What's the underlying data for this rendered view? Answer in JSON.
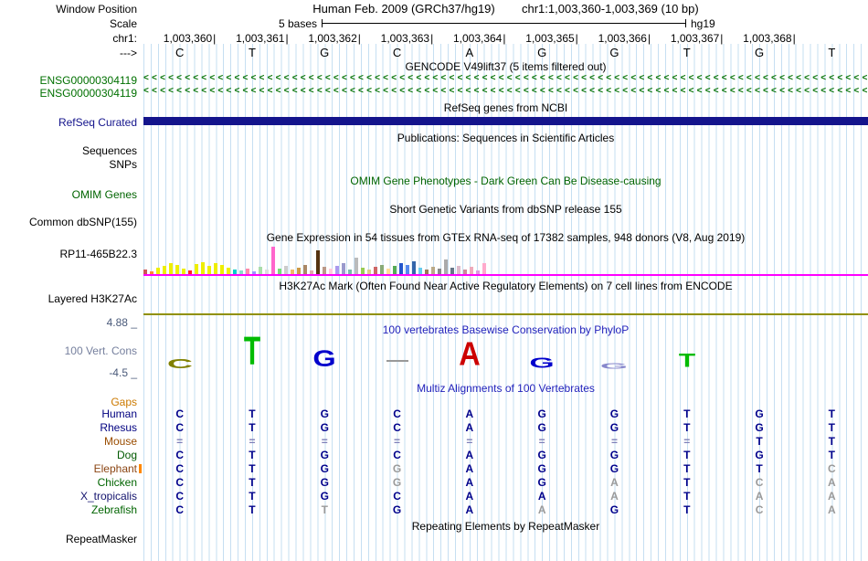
{
  "header": {
    "assembly": "Human Feb. 2009 (GRCh37/hg19)",
    "range": "chr1:1,003,360-1,003,369 (10 bp)",
    "window_position_label": "Window Position",
    "scale_label": "Scale",
    "scale_value": "5 bases",
    "assembly_short": "hg19",
    "chrom_label": "chr1:",
    "strand_arrow": "--->",
    "positions": [
      "1,003,360",
      "1,003,361",
      "1,003,362",
      "1,003,363",
      "1,003,364",
      "1,003,365",
      "1,003,366",
      "1,003,367",
      "1,003,368"
    ],
    "sequence": [
      "C",
      "T",
      "G",
      "C",
      "A",
      "G",
      "G",
      "T",
      "G",
      "T"
    ]
  },
  "tracks": {
    "gencode": {
      "title": "GENCODE V49lift37 (5 items filtered out)",
      "genes": [
        {
          "label": "ENSG00000304119"
        },
        {
          "label": "ENSG00000304119"
        }
      ]
    },
    "refseq": {
      "title": "RefSeq genes from NCBI",
      "label": "RefSeq Curated"
    },
    "publications": {
      "title": "Publications: Sequences in Scientific Articles",
      "row_labels": [
        "Sequences",
        "SNPs"
      ]
    },
    "omim": {
      "title": "OMIM Gene Phenotypes - Dark Green Can Be Disease-causing",
      "label": "OMIM Genes"
    },
    "dbsnp": {
      "title": "Short Genetic Variants from dbSNP release 155",
      "label": "Common dbSNP(155)"
    },
    "gtex": {
      "title": "Gene Expression in 54 tissues from GTEx RNA-seq of 17382 samples, 948 donors (V8, Aug 2019)",
      "label": "RP11-465B22.3"
    },
    "h3k27ac": {
      "title": "H3K27Ac Mark (Often Found Near Active Regulatory Elements) on 7 cell lines from ENCODE",
      "label": "Layered H3K27Ac"
    },
    "conservation": {
      "title": "100 vertebrates Basewise Conservation by PhyloP",
      "label": "100 Vert. Cons",
      "max_label": "4.88 _",
      "min_label": "-4.5 _",
      "logo": [
        {
          "col": 0,
          "ch": "C",
          "color": "#808000",
          "h": 10,
          "sx": 1.5
        },
        {
          "col": 1,
          "ch": "T",
          "color": "#00BB00",
          "h": 30,
          "sx": 1.15
        },
        {
          "col": 2,
          "ch": "G",
          "color": "#0000CC",
          "h": 17,
          "sx": 1.25
        },
        {
          "col": 3,
          "ch": "-",
          "color": "#999999",
          "h": 2,
          "sx": 1,
          "bar": true
        },
        {
          "col": 4,
          "ch": "A",
          "color": "#CC0000",
          "h": 25,
          "sx": 1.25
        },
        {
          "col": 5,
          "ch": "G",
          "color": "#0000CC",
          "h": 11,
          "sx": 1.35
        },
        {
          "col": 6,
          "ch": "G",
          "color": "#8888CC",
          "h": 6,
          "sx": 1.5
        },
        {
          "col": 7,
          "ch": "T",
          "color": "#00BB00",
          "h": 15,
          "sx": 1.15
        }
      ]
    },
    "multiz": {
      "title": "Multiz Alignments of 100 Vertebrates",
      "gaps_label": "Gaps",
      "rows": [
        {
          "species": "Human",
          "color": "#000080",
          "bases": [
            "C",
            "T",
            "G",
            "C",
            "A",
            "G",
            "G",
            "T",
            "G",
            "T"
          ],
          "gray": []
        },
        {
          "species": "Rhesus",
          "color": "#000080",
          "bases": [
            "C",
            "T",
            "G",
            "C",
            "A",
            "G",
            "G",
            "T",
            "G",
            "T"
          ],
          "gray": []
        },
        {
          "species": "Mouse",
          "color": "#994C00",
          "bases": [
            "=",
            "=",
            "=",
            "=",
            "=",
            "=",
            "=",
            "=",
            "T",
            "T"
          ],
          "gray": []
        },
        {
          "species": "Dog",
          "color": "#005900",
          "bases": [
            "C",
            "T",
            "G",
            "C",
            "A",
            "G",
            "G",
            "T",
            "G",
            "T"
          ],
          "gray": []
        },
        {
          "species": "Elephant",
          "color": "#8B4513",
          "bases": [
            "C",
            "T",
            "G",
            "G",
            "A",
            "G",
            "G",
            "T",
            "T",
            "C"
          ],
          "gray": [
            3,
            9
          ],
          "tick": true
        },
        {
          "species": "Chicken",
          "color": "#006400",
          "bases": [
            "C",
            "T",
            "G",
            "G",
            "A",
            "G",
            "A",
            "T",
            "C",
            "A"
          ],
          "gray": [
            3,
            6,
            8,
            9
          ]
        },
        {
          "species": "X_tropicalis",
          "color": "#14146E",
          "bases": [
            "C",
            "T",
            "G",
            "C",
            "A",
            "A",
            "A",
            "T",
            "A",
            "A"
          ],
          "gray": [
            6,
            8,
            9
          ]
        },
        {
          "species": "Zebrafish",
          "color": "#006400",
          "bases": [
            "C",
            "T",
            "T",
            "G",
            "A",
            "A",
            "G",
            "T",
            "C",
            "A"
          ],
          "gray": [
            2,
            5,
            8,
            9
          ]
        }
      ]
    },
    "repeatmasker": {
      "title": "Repeating Elements by RepeatMasker",
      "label": "RepeatMasker"
    }
  },
  "chart_data": {
    "type": "bar",
    "title": "Gene Expression in 54 tissues from GTEx RNA-seq of 17382 samples, 948 donors (V8, Aug 2019)",
    "gene": "RP11-465B22.3",
    "note": "54 tissue expression bars, heights in px as rendered (no numeric axis shown)",
    "bars": [
      {
        "h": 5,
        "c": "#cc5555"
      },
      {
        "h": 3,
        "c": "#ff8833"
      },
      {
        "h": 7,
        "c": "#eeee00"
      },
      {
        "h": 9,
        "c": "#eeee00"
      },
      {
        "h": 12,
        "c": "#eeee00"
      },
      {
        "h": 10,
        "c": "#eeee00"
      },
      {
        "h": 6,
        "c": "#eeee00"
      },
      {
        "h": 4,
        "c": "#ff2222"
      },
      {
        "h": 11,
        "c": "#eeee00"
      },
      {
        "h": 13,
        "c": "#eeee00"
      },
      {
        "h": 9,
        "c": "#eeee00"
      },
      {
        "h": 12,
        "c": "#eeee00"
      },
      {
        "h": 10,
        "c": "#eeee00"
      },
      {
        "h": 7,
        "c": "#eeee00"
      },
      {
        "h": 5,
        "c": "#00cccc"
      },
      {
        "h": 4,
        "c": "#88ddcc"
      },
      {
        "h": 6,
        "c": "#ff88aa"
      },
      {
        "h": 3,
        "c": "#9999ff"
      },
      {
        "h": 8,
        "c": "#aaddaa"
      },
      {
        "h": 5,
        "c": "#dddddd"
      },
      {
        "h": 30,
        "c": "#ff66cc"
      },
      {
        "h": 6,
        "c": "#77dd77"
      },
      {
        "h": 9,
        "c": "#cccccc"
      },
      {
        "h": 5,
        "c": "#eebb66"
      },
      {
        "h": 7,
        "c": "#cc9944"
      },
      {
        "h": 10,
        "c": "#aa8866"
      },
      {
        "h": 4,
        "c": "#ddaaaa"
      },
      {
        "h": 26,
        "c": "#553311"
      },
      {
        "h": 8,
        "c": "#bb9988"
      },
      {
        "h": 6,
        "c": "#ffccdd"
      },
      {
        "h": 9,
        "c": "#aa99ee"
      },
      {
        "h": 12,
        "c": "#9999cc"
      },
      {
        "h": 5,
        "c": "#77bbaa"
      },
      {
        "h": 18,
        "c": "#bbbbbb"
      },
      {
        "h": 7,
        "c": "#99cc55"
      },
      {
        "h": 5,
        "c": "#ddcc88"
      },
      {
        "h": 8,
        "c": "#cc6666"
      },
      {
        "h": 10,
        "c": "#88aa77"
      },
      {
        "h": 6,
        "c": "#ffdd99"
      },
      {
        "h": 9,
        "c": "#55aa55"
      },
      {
        "h": 12,
        "c": "#2255cc"
      },
      {
        "h": 10,
        "c": "#5588ee"
      },
      {
        "h": 14,
        "c": "#3366aa"
      },
      {
        "h": 7,
        "c": "#66ccee"
      },
      {
        "h": 5,
        "c": "#997755"
      },
      {
        "h": 8,
        "c": "#bbaa88"
      },
      {
        "h": 6,
        "c": "#888888"
      },
      {
        "h": 16,
        "c": "#aaaaaa"
      },
      {
        "h": 7,
        "c": "#667788"
      },
      {
        "h": 9,
        "c": "#ddbbcc"
      },
      {
        "h": 5,
        "c": "#cc8899"
      },
      {
        "h": 8,
        "c": "#eeaabb"
      },
      {
        "h": 4,
        "c": "#dd99dd"
      },
      {
        "h": 12,
        "c": "#ffaacc"
      }
    ]
  },
  "colors": {
    "grid": "#c6dff2",
    "gene_green": "#007000",
    "refseq_blue": "#14148C",
    "omim_green": "#006400",
    "magenta": "#FF00FF",
    "olive": "#909000",
    "title_blue": "#2222BB",
    "cons_label": "#76809E",
    "cons_range": "#4A5A7A",
    "gaps_orange": "#CC7A00",
    "align_dark": "#00008B",
    "align_gray": "#9A9A9A",
    "equals": "#8080B8"
  }
}
